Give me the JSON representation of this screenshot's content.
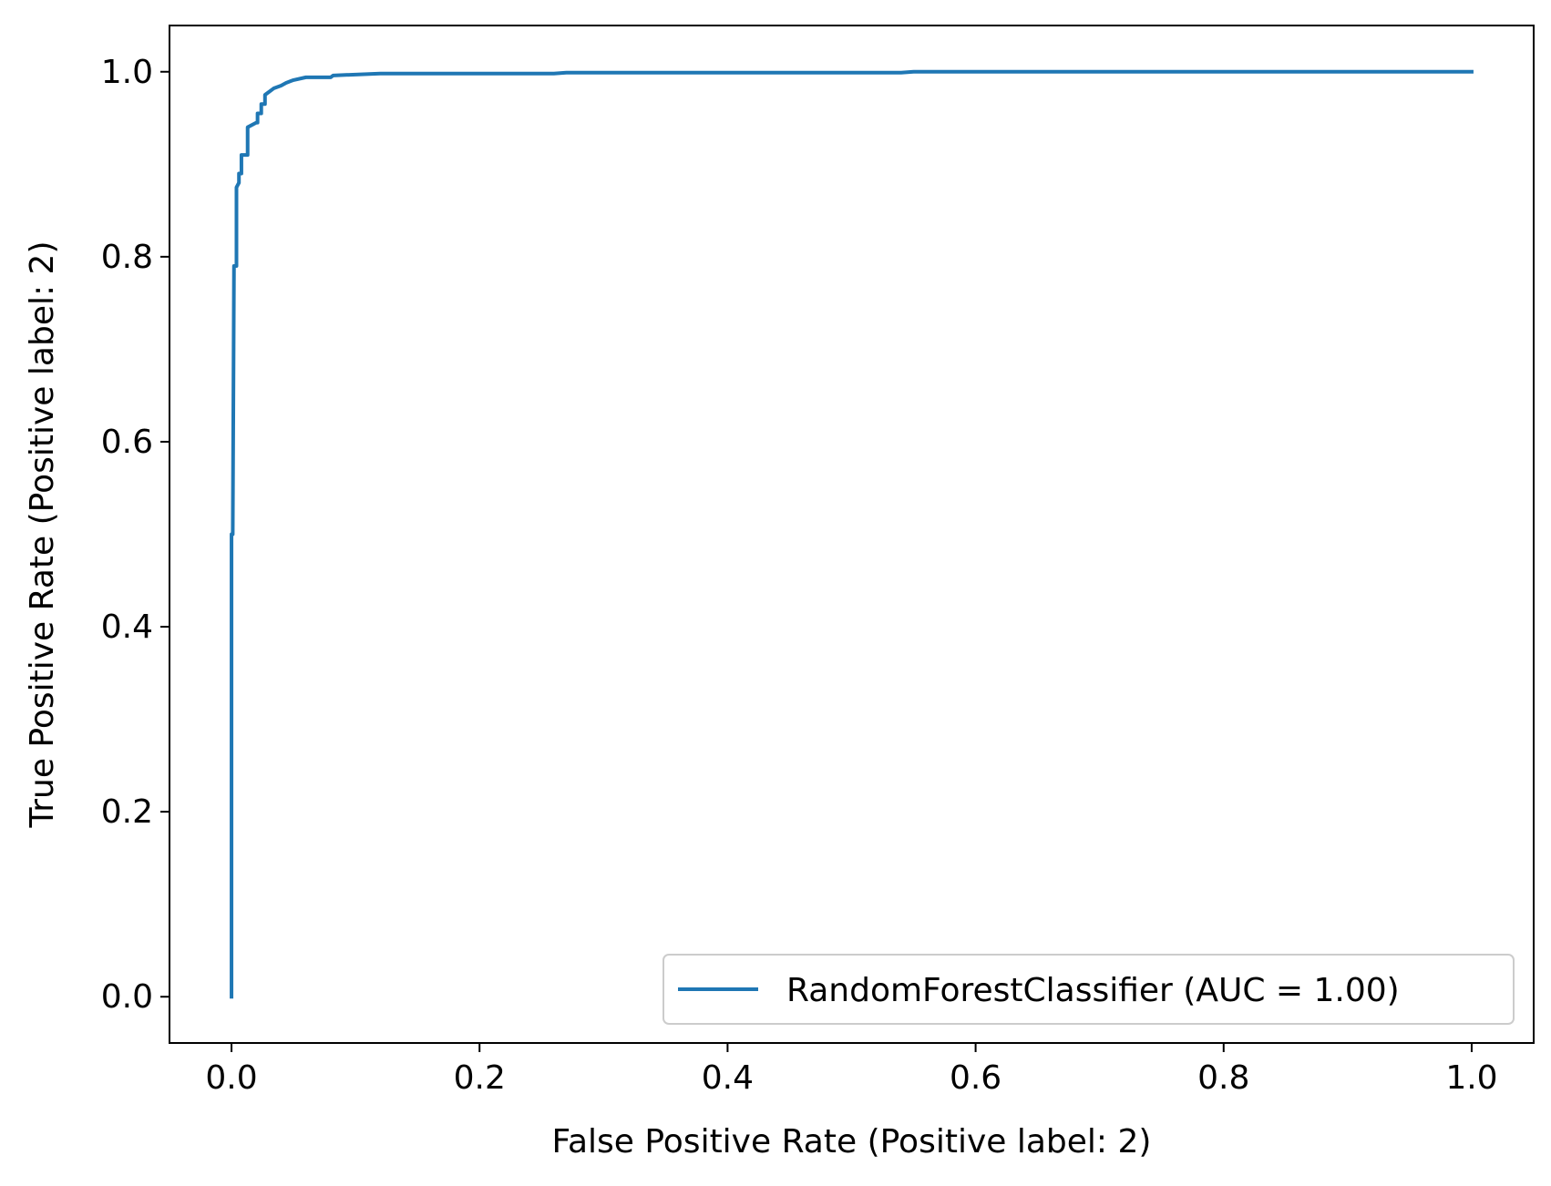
{
  "chart_data": {
    "type": "line",
    "title": "",
    "xlabel": "False Positive Rate (Positive label: 2)",
    "ylabel": "True Positive Rate (Positive label: 2)",
    "xlim": [
      -0.05,
      1.05
    ],
    "ylim": [
      -0.05,
      1.05
    ],
    "xticks": [
      0.0,
      0.2,
      0.4,
      0.6,
      0.8,
      1.0
    ],
    "yticks": [
      0.0,
      0.2,
      0.4,
      0.6,
      0.8,
      1.0
    ],
    "xtick_labels": [
      "0.0",
      "0.2",
      "0.4",
      "0.6",
      "0.8",
      "1.0"
    ],
    "ytick_labels": [
      "0.0",
      "0.2",
      "0.4",
      "0.6",
      "0.8",
      "1.0"
    ],
    "grid": false,
    "legend": {
      "placement": "lower-right",
      "entries": [
        "RandomForestClassifier (AUC = 1.00)"
      ]
    },
    "colors": {
      "series": "#1f77b4",
      "axes": "#000000",
      "legend_border": "#cccccc"
    },
    "series": [
      {
        "name": "RandomForestClassifier (AUC = 1.00)",
        "x": [
          0.0,
          0.0,
          0.0,
          0.001,
          0.002,
          0.002,
          0.004,
          0.004,
          0.006,
          0.006,
          0.008,
          0.008,
          0.012,
          0.013,
          0.013,
          0.02,
          0.021,
          0.021,
          0.024,
          0.024,
          0.027,
          0.027,
          0.03,
          0.034,
          0.04,
          0.044,
          0.048,
          0.05,
          0.06,
          0.08,
          0.082,
          0.1,
          0.12,
          0.14,
          0.26,
          0.27,
          0.54,
          0.55,
          1.0
        ],
        "y": [
          0.0,
          0.48,
          0.5,
          0.5,
          0.79,
          0.79,
          0.79,
          0.875,
          0.88,
          0.89,
          0.89,
          0.91,
          0.91,
          0.91,
          0.94,
          0.945,
          0.945,
          0.955,
          0.955,
          0.965,
          0.965,
          0.975,
          0.978,
          0.982,
          0.985,
          0.988,
          0.99,
          0.991,
          0.994,
          0.994,
          0.996,
          0.997,
          0.998,
          0.998,
          0.998,
          0.999,
          0.999,
          1.0,
          1.0
        ]
      }
    ]
  }
}
